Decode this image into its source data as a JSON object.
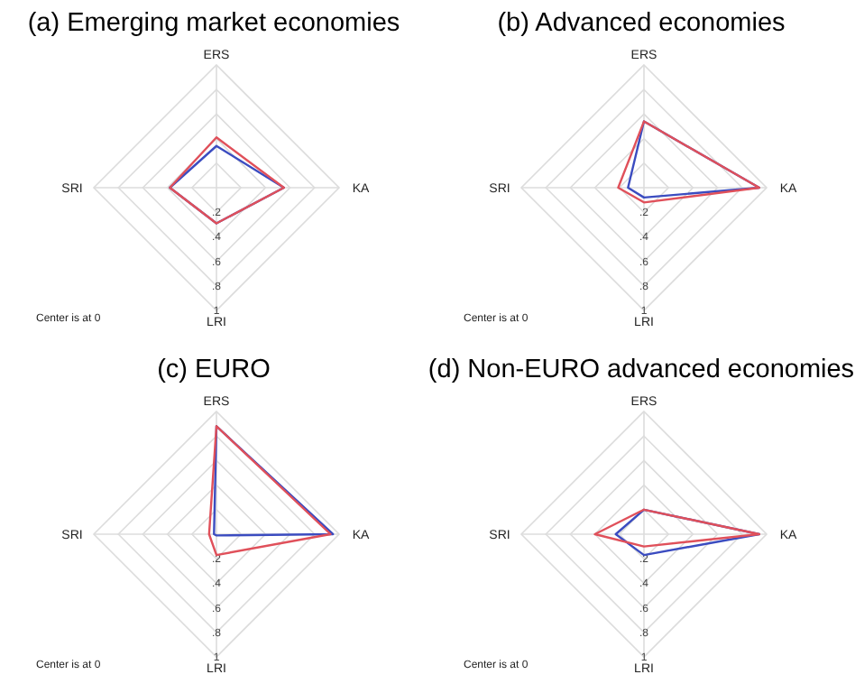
{
  "chart_data": [
    {
      "type": "radar",
      "title": "(a)  Emerging market economies",
      "categories": [
        "ERS",
        "KA",
        "LRI",
        "SRI"
      ],
      "ylim": [
        0,
        1
      ],
      "yticks": [
        {
          "value": 0.2,
          "label": ".2"
        },
        {
          "value": 0.4,
          "label": ".4"
        },
        {
          "value": 0.6,
          "label": ".6"
        },
        {
          "value": 0.8,
          "label": ".8"
        },
        {
          "value": 1,
          "label": "1"
        }
      ],
      "grid": true,
      "annotations": [
        "Center is at 0"
      ],
      "series": [
        {
          "color": "#3b4cc0",
          "values": [
            0.34,
            0.55,
            0.29,
            0.38
          ]
        },
        {
          "color": "#e0505a",
          "values": [
            0.41,
            0.55,
            0.29,
            0.38
          ]
        }
      ]
    },
    {
      "type": "radar",
      "title": "(b)  Advanced economies",
      "categories": [
        "ERS",
        "KA",
        "LRI",
        "SRI"
      ],
      "ylim": [
        0,
        1
      ],
      "yticks": [
        {
          "value": 0.2,
          "label": ".2"
        },
        {
          "value": 0.4,
          "label": ".4"
        },
        {
          "value": 0.6,
          "label": ".6"
        },
        {
          "value": 0.8,
          "label": ".8"
        },
        {
          "value": 1,
          "label": "1"
        }
      ],
      "grid": true,
      "annotations": [
        "Center is at 0"
      ],
      "series": [
        {
          "color": "#3b4cc0",
          "values": [
            0.54,
            0.94,
            0.08,
            0.13
          ]
        },
        {
          "color": "#e0505a",
          "values": [
            0.54,
            0.94,
            0.12,
            0.21
          ]
        }
      ]
    },
    {
      "type": "radar",
      "title": "(c)  EURO",
      "categories": [
        "ERS",
        "KA",
        "LRI",
        "SRI"
      ],
      "ylim": [
        0,
        1
      ],
      "yticks": [
        {
          "value": 0.2,
          "label": ".2"
        },
        {
          "value": 0.4,
          "label": ".4"
        },
        {
          "value": 0.6,
          "label": ".6"
        },
        {
          "value": 0.8,
          "label": ".8"
        },
        {
          "value": 1,
          "label": "1"
        }
      ],
      "grid": true,
      "annotations": [
        "Center is at 0"
      ],
      "series": [
        {
          "color": "#3b4cc0",
          "values": [
            0.88,
            0.95,
            0.01,
            0.02
          ]
        },
        {
          "color": "#e0505a",
          "values": [
            0.88,
            0.93,
            0.17,
            0.06
          ]
        }
      ]
    },
    {
      "type": "radar",
      "title": "(d)  Non-EURO advanced economies",
      "categories": [
        "ERS",
        "KA",
        "LRI",
        "SRI"
      ],
      "ylim": [
        0,
        1
      ],
      "yticks": [
        {
          "value": 0.2,
          "label": ".2"
        },
        {
          "value": 0.4,
          "label": ".4"
        },
        {
          "value": 0.6,
          "label": ".6"
        },
        {
          "value": 0.8,
          "label": ".8"
        },
        {
          "value": 1,
          "label": "1"
        }
      ],
      "grid": true,
      "annotations": [
        "Center is at 0"
      ],
      "series": [
        {
          "color": "#3b4cc0",
          "values": [
            0.2,
            0.94,
            0.17,
            0.23
          ]
        },
        {
          "color": "#e0505a",
          "values": [
            0.2,
            0.94,
            0.1,
            0.4
          ]
        }
      ]
    }
  ]
}
